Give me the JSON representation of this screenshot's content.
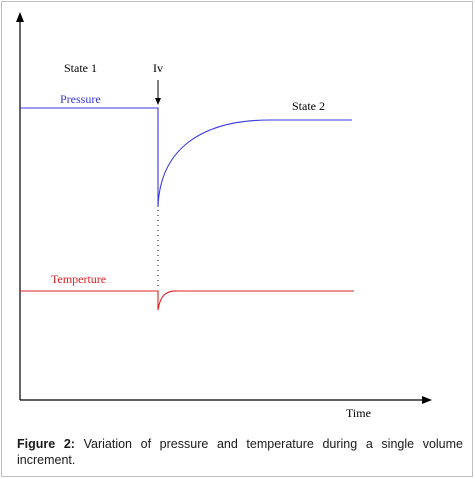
{
  "diagram": {
    "labels": {
      "state1": "State 1",
      "state2": "State 2",
      "iv": "Iv",
      "pressure": "Pressure",
      "temperature": "Temperture",
      "time": "Time"
    },
    "colors": {
      "pressure": "#3a3adf",
      "temperature": "#e02020",
      "axis": "#000000"
    }
  },
  "caption": {
    "label": "Figure 2:",
    "text": "Variation of pressure and temperature during a single volume increment."
  }
}
